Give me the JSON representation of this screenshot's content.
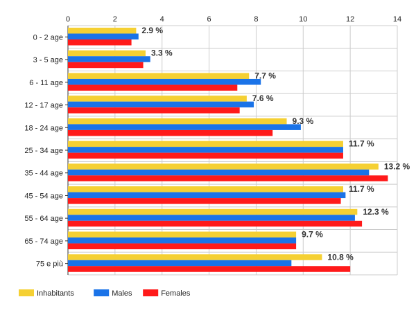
{
  "chart_data": {
    "type": "bar",
    "orientation": "horizontal",
    "categories": [
      "0 - 2 age",
      "3 - 5 age",
      "6 - 11 age",
      "12 - 17 age",
      "18 - 24 age",
      "25 - 34 age",
      "35 - 44 age",
      "45 - 54 age",
      "55 - 64 age",
      "65 - 74 age",
      "75 e più"
    ],
    "series": [
      {
        "name": "Inhabitants",
        "color": "#f5d033",
        "values": [
          2.9,
          3.3,
          7.7,
          7.6,
          9.3,
          11.7,
          13.2,
          11.7,
          12.3,
          9.7,
          10.8
        ]
      },
      {
        "name": "Males",
        "color": "#1a73e8",
        "values": [
          3.0,
          3.5,
          8.2,
          7.9,
          9.9,
          11.7,
          12.8,
          11.8,
          12.2,
          9.7,
          9.5
        ]
      },
      {
        "name": "Females",
        "color": "#ff1a1a",
        "values": [
          2.7,
          3.2,
          7.2,
          7.3,
          8.7,
          11.7,
          13.6,
          11.6,
          12.5,
          9.7,
          12.0
        ]
      }
    ],
    "data_labels": [
      "2.9 %",
      "3.3 %",
      "7.7 %",
      "7.6 %",
      "9.3 %",
      "11.7 %",
      "13.2 %",
      "11.7 %",
      "12.3 %",
      "9.7 %",
      "10.8 %"
    ],
    "x_ticks": [
      "0",
      "2",
      "4",
      "6",
      "8",
      "10",
      "12",
      "14"
    ],
    "xlim": [
      0,
      14
    ],
    "title": "",
    "xlabel": "",
    "ylabel": "",
    "grid": true,
    "legend_position": "bottom-left"
  }
}
